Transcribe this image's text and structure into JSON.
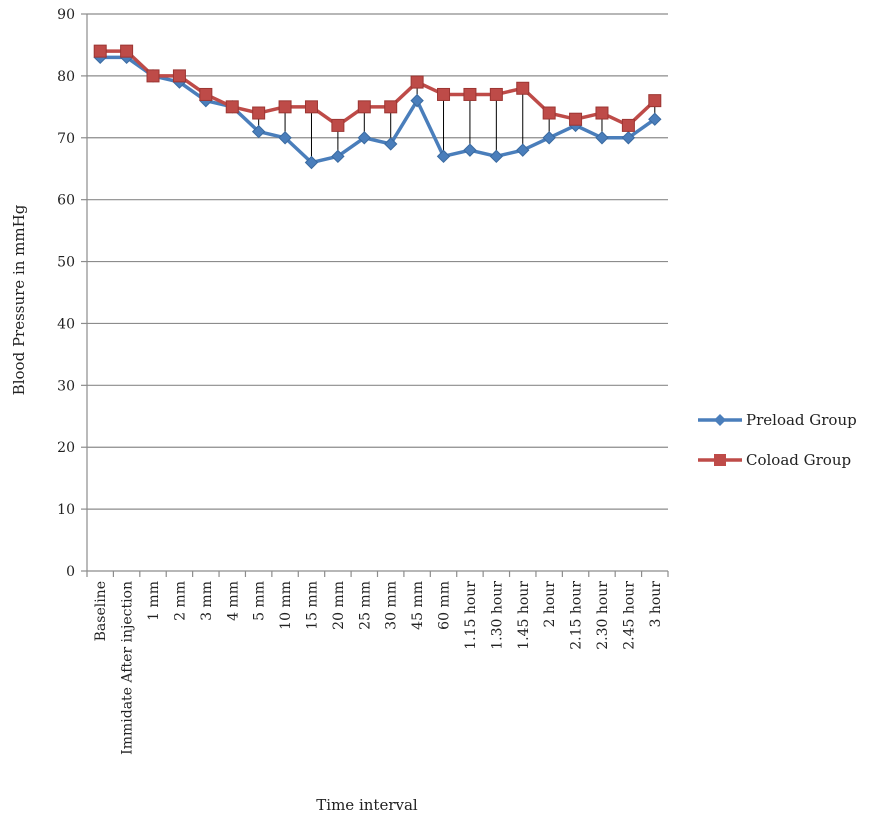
{
  "chart_data": {
    "type": "line",
    "title": "",
    "xlabel": "Time interval",
    "ylabel": "Blood Pressure in mmHg",
    "ylim": [
      0,
      90
    ],
    "yticks": [
      0,
      10,
      20,
      30,
      40,
      50,
      60,
      70,
      80,
      90
    ],
    "grid": true,
    "legend_position": "right",
    "categories": [
      "Baseline",
      "Immidate After injection",
      "1 mm",
      "2 mm",
      "3 mm",
      "4 mm",
      "5 mm",
      "10 mm",
      "15 mm",
      "20 mm",
      "25 mm",
      "30 mm",
      "45 mm",
      "60 mm",
      "1.15 hour",
      "1.30 hour",
      "1.45 hour",
      "2 hour",
      "2.15 hour",
      "2.30 hour",
      "2.45 hour",
      "3 hour"
    ],
    "series": [
      {
        "name": "Preload Group",
        "color": "#4a7ebb",
        "marker": "diamond",
        "values": [
          83,
          83,
          80,
          79,
          76,
          75,
          71,
          70,
          66,
          67,
          70,
          69,
          76,
          67,
          68,
          67,
          68,
          70,
          72,
          70,
          70,
          73
        ]
      },
      {
        "name": "Coload Group",
        "color": "#be4b48",
        "marker": "square",
        "values": [
          84,
          84,
          80,
          80,
          77,
          75,
          74,
          75,
          75,
          72,
          75,
          75,
          79,
          77,
          77,
          77,
          78,
          74,
          73,
          74,
          72,
          76
        ]
      }
    ],
    "drop_lines": true
  }
}
